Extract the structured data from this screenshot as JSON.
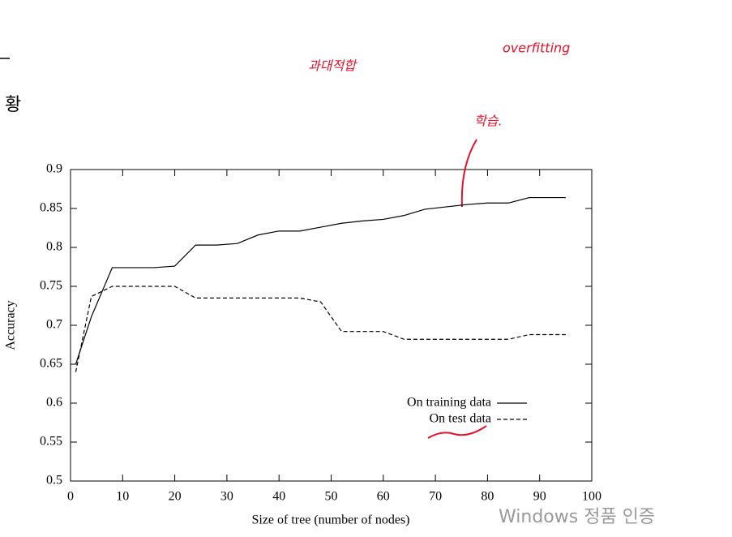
{
  "chart_data": {
    "type": "line",
    "xlabel": "Size of tree (number of nodes)",
    "ylabel": "Accuracy",
    "x": [
      1,
      4,
      8,
      12,
      16,
      20,
      24,
      28,
      32,
      36,
      40,
      44,
      48,
      52,
      56,
      60,
      64,
      68,
      72,
      76,
      80,
      84,
      88,
      92,
      95
    ],
    "series": [
      {
        "name": "On training data",
        "color": "#000000",
        "dash": false,
        "values": [
          0.65,
          0.711,
          0.774,
          0.774,
          0.774,
          0.776,
          0.803,
          0.803,
          0.805,
          0.816,
          0.821,
          0.821,
          0.826,
          0.831,
          0.834,
          0.836,
          0.841,
          0.849,
          0.852,
          0.855,
          0.857,
          0.857,
          0.864,
          0.864,
          0.864
        ]
      },
      {
        "name": "On test data",
        "color": "#000000",
        "dash": true,
        "values": [
          0.64,
          0.737,
          0.75,
          0.75,
          0.75,
          0.75,
          0.735,
          0.735,
          0.735,
          0.735,
          0.735,
          0.735,
          0.73,
          0.692,
          0.692,
          0.692,
          0.682,
          0.682,
          0.682,
          0.682,
          0.682,
          0.682,
          0.688,
          0.688,
          0.688
        ]
      }
    ],
    "xlim": [
      0,
      100
    ],
    "ylim": [
      0.5,
      0.9
    ],
    "xticks": [
      0,
      10,
      20,
      30,
      40,
      50,
      60,
      70,
      80,
      90,
      100
    ],
    "yticks": [
      0.5,
      0.55,
      0.6,
      0.65,
      0.7,
      0.75,
      0.8,
      0.85,
      0.9
    ],
    "grid": false,
    "legend": "lower right",
    "annotations": [
      "과대적합",
      "overfitting",
      "학습."
    ]
  },
  "page_fragment": "황",
  "watermark": "Windows 정품 인증"
}
